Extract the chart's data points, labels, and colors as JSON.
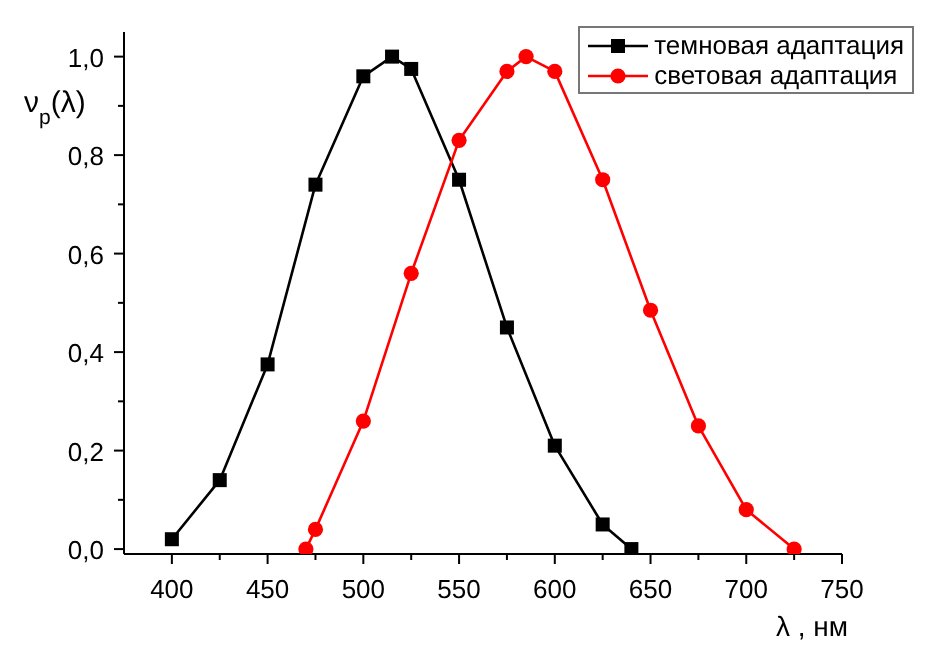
{
  "chart_data": {
    "type": "line",
    "xlabel": "λ , нм",
    "ylabel": "ν$_{p}$(λ)",
    "xlim": [
      375,
      750
    ],
    "xticks": [
      400,
      {
        "value": 425,
        "label": null
      },
      450,
      {
        "value": 475,
        "label": null
      },
      500,
      {
        "value": 525,
        "label": null
      },
      550,
      {
        "value": 575,
        "label": null
      },
      600,
      {
        "value": 625,
        "label": null
      },
      650,
      {
        "value": 675,
        "label": null
      },
      700,
      {
        "value": 725,
        "label": null
      },
      750
    ],
    "ylim": [
      -0.01,
      1.05
    ],
    "yticks": [
      {
        "value": 0,
        "label": "0,0"
      },
      {
        "value": 0.1,
        "label": null
      },
      {
        "value": 0.2,
        "label": "0,2"
      },
      {
        "value": 0.3,
        "label": null
      },
      {
        "value": 0.4,
        "label": "0,4"
      },
      {
        "value": 0.5,
        "label": null
      },
      {
        "value": 0.6,
        "label": "0,6"
      },
      {
        "value": 0.7,
        "label": null
      },
      {
        "value": 0.8,
        "label": "0,8"
      },
      {
        "value": 0.9,
        "label": null
      },
      {
        "value": 1.0,
        "label": "1,0"
      }
    ],
    "grid": false,
    "legend": "top right",
    "series": [
      {
        "name": "темновая адаптация",
        "color": "#000000",
        "marker": "square",
        "x": [
          400,
          425,
          450,
          475,
          500,
          515,
          525,
          550,
          575,
          600,
          625,
          640
        ],
        "values": [
          0.02,
          0.14,
          0.375,
          0.74,
          0.96,
          1.0,
          0.975,
          0.75,
          0.45,
          0.21,
          0.05,
          0.0
        ]
      },
      {
        "name": "световая адаптация",
        "color": "#ff0000",
        "marker": "circle",
        "x": [
          470,
          475,
          500,
          525,
          550,
          575,
          585,
          600,
          625,
          650,
          675,
          700,
          725
        ],
        "values": [
          0.0,
          0.04,
          0.26,
          0.56,
          0.83,
          0.97,
          1.0,
          0.97,
          0.75,
          0.485,
          0.25,
          0.08,
          0.0
        ]
      }
    ]
  }
}
